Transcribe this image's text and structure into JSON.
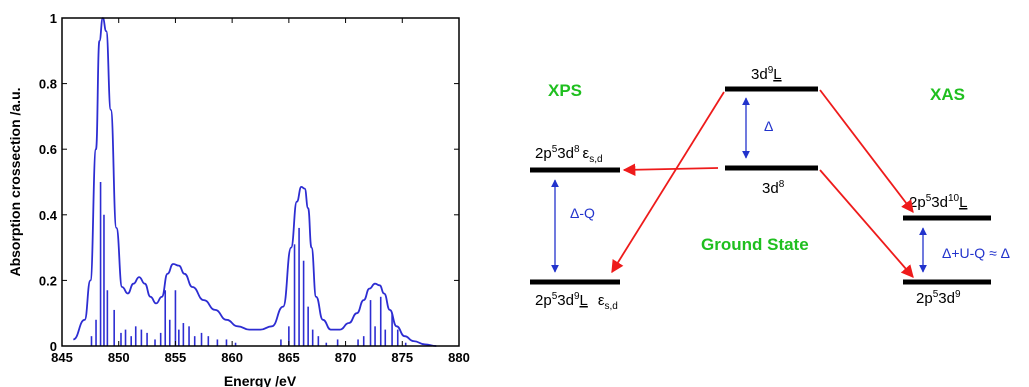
{
  "chart_data": {
    "type": "line",
    "xlabel": "Energy /eV",
    "ylabel": "Absorption crossection /a.u.",
    "xlim": [
      845,
      880
    ],
    "ylim": [
      0,
      1
    ],
    "xticks": [
      "845",
      "850",
      "855",
      "860",
      "865",
      "870",
      "875",
      "880"
    ],
    "yticks": [
      "0",
      "0.2",
      "0.4",
      "0.6",
      "0.8",
      "1"
    ],
    "grid": false,
    "spectrum": {
      "x": [
        846.0,
        847.0,
        847.5,
        848.0,
        848.3,
        848.6,
        848.9,
        849.3,
        849.8,
        850.3,
        850.8,
        851.3,
        851.8,
        852.3,
        852.8,
        853.3,
        853.8,
        854.3,
        854.8,
        855.3,
        855.8,
        856.5,
        857.5,
        858.5,
        859.5,
        860.5,
        861.5,
        862.5,
        863.5,
        864.5,
        865.2,
        865.7,
        866.1,
        866.4,
        866.7,
        867.0,
        867.4,
        868.0,
        868.7,
        869.5,
        870.3,
        871.0,
        871.6,
        872.1,
        872.6,
        873.0,
        873.4,
        873.9,
        874.5,
        875.2,
        876.0,
        877.0,
        878.0
      ],
      "y": [
        0.02,
        0.08,
        0.2,
        0.6,
        0.93,
        1.0,
        0.96,
        0.72,
        0.36,
        0.18,
        0.16,
        0.19,
        0.21,
        0.19,
        0.15,
        0.13,
        0.15,
        0.22,
        0.25,
        0.245,
        0.22,
        0.18,
        0.14,
        0.11,
        0.08,
        0.06,
        0.05,
        0.05,
        0.06,
        0.12,
        0.3,
        0.44,
        0.485,
        0.48,
        0.42,
        0.3,
        0.15,
        0.08,
        0.05,
        0.05,
        0.07,
        0.1,
        0.14,
        0.175,
        0.19,
        0.185,
        0.16,
        0.11,
        0.06,
        0.03,
        0.015,
        0.005,
        0.0
      ]
    },
    "sticks": {
      "x": [
        847.6,
        848.0,
        848.4,
        848.7,
        849.0,
        849.6,
        850.2,
        850.6,
        851.1,
        851.5,
        852.0,
        852.5,
        853.2,
        853.7,
        854.1,
        854.5,
        855.0,
        855.3,
        855.7,
        856.2,
        856.7,
        857.3,
        857.9,
        858.7,
        859.5,
        860.3,
        864.3,
        865.0,
        865.5,
        865.9,
        866.3,
        866.7,
        867.1,
        867.6,
        868.3,
        869.3,
        871.1,
        871.6,
        872.2,
        872.6,
        873.1,
        873.5,
        874.1,
        874.6,
        875.3
      ],
      "y": [
        0.03,
        0.08,
        0.5,
        0.4,
        0.17,
        0.11,
        0.04,
        0.05,
        0.03,
        0.06,
        0.05,
        0.04,
        0.02,
        0.04,
        0.17,
        0.08,
        0.17,
        0.05,
        0.07,
        0.06,
        0.03,
        0.04,
        0.03,
        0.02,
        0.02,
        0.01,
        0.02,
        0.06,
        0.31,
        0.36,
        0.26,
        0.12,
        0.05,
        0.03,
        0.01,
        0.02,
        0.02,
        0.03,
        0.14,
        0.06,
        0.15,
        0.05,
        0.1,
        0.05,
        0.01
      ]
    }
  },
  "diagram": {
    "xps_title": "XPS",
    "xas_title": "XAS",
    "ground_state_label": "Ground State",
    "delta_label": "Δ",
    "delta_q_label": "Δ-Q",
    "delta_uq_label": "Δ+U-Q ≈ Δ",
    "states": {
      "gs_upper_base": "3d",
      "gs_upper_sup": "9",
      "gs_upper_L": "L",
      "gs_lower_base": "3d",
      "gs_lower_sup": "8",
      "xps_upper_a": "2p",
      "xps_upper_a_sup": "5",
      "xps_upper_b": "3d",
      "xps_upper_b_sup": "8",
      "xps_upper_eps": "ε",
      "xps_upper_eps_sub": "s,d",
      "xps_lower_a": "2p",
      "xps_lower_a_sup": "5",
      "xps_lower_b": "3d",
      "xps_lower_b_sup": "9",
      "xps_lower_L": "L",
      "xps_lower_eps": "ε",
      "xps_lower_eps_sub": "s,d",
      "xas_upper_a": "2p",
      "xas_upper_a_sup": "5",
      "xas_upper_b": "3d",
      "xas_upper_b_sup": "10",
      "xas_upper_L": "L",
      "xas_lower_a": "2p",
      "xas_lower_a_sup": "5",
      "xas_lower_b": "3d",
      "xas_lower_b_sup": "9"
    },
    "colors": {
      "spectrum": "#2d2dd2",
      "transition_arrow": "#ee1b1b",
      "gap_arrow": "#2233cc",
      "header": "#1fbf1f",
      "level": "#000000"
    }
  }
}
